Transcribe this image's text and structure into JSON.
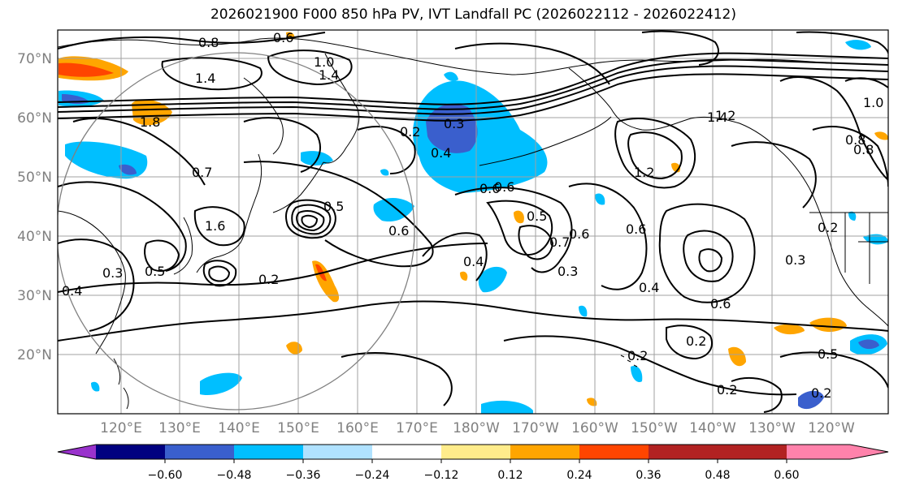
{
  "title": "2026021900 F000 850 hPa PV, IVT Landfall PC (2026022112 - 2026022412)",
  "map": {
    "lat_labels": [
      "70°N",
      "60°N",
      "50°N",
      "40°N",
      "30°N",
      "20°N"
    ],
    "lon_labels": [
      "120°E",
      "130°E",
      "140°E",
      "150°E",
      "160°E",
      "170°E",
      "180°W",
      "170°W",
      "160°W",
      "150°W",
      "140°W",
      "130°W",
      "120°W"
    ],
    "contour_labels": [
      "0.8",
      "0.6",
      "1.0",
      "1.4",
      "1.4",
      "1.4",
      "1.8",
      "1.2",
      "0.8",
      "0.7",
      "0.5",
      "1.6",
      "0.2",
      "0.6",
      "0.3",
      "0.4",
      "0.2",
      "0.5",
      "0.6",
      "0.4",
      "0.3",
      "0.4",
      "0.6",
      "0.5",
      "0.7",
      "0.6",
      "0.3",
      "0.6",
      "0.4",
      "0.6",
      "1.2",
      "0.8",
      "1.0",
      "0.2",
      "0.3",
      "0.2",
      "0.2",
      "0.2",
      "0.5",
      "0.2"
    ],
    "colors": {
      "land": "#000000",
      "grid": "#999999",
      "contour": "#000000",
      "ring": "#808080"
    }
  },
  "colorbar": {
    "tick_labels": [
      "−0.60",
      "−0.48",
      "−0.36",
      "−0.24",
      "−0.12",
      "0.12",
      "0.24",
      "0.36",
      "0.48",
      "0.60"
    ],
    "bins": [
      {
        "color": "#9932CC"
      },
      {
        "color": "#000080"
      },
      {
        "color": "#3A5FCD"
      },
      {
        "color": "#00BFFF"
      },
      {
        "color": "#B0E2FF"
      },
      {
        "color": "#FFFFFF"
      },
      {
        "color": "#FFEC8B"
      },
      {
        "color": "#FFA500"
      },
      {
        "color": "#FF4500"
      },
      {
        "color": "#B22222"
      },
      {
        "color": "#FF82AB"
      }
    ]
  }
}
